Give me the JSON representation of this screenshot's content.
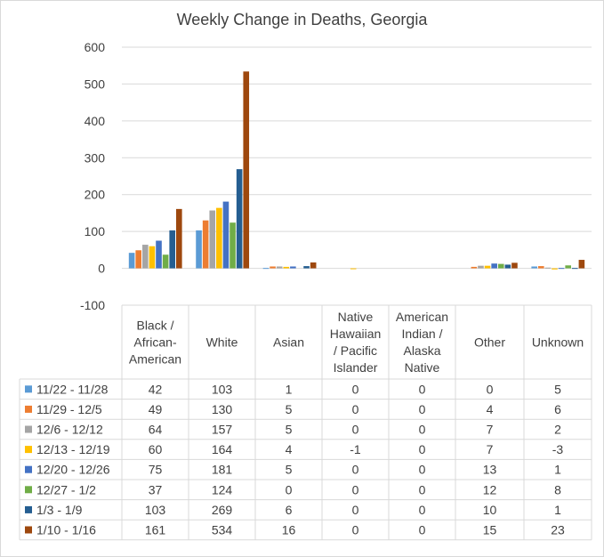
{
  "chart_data": {
    "type": "bar",
    "title": "Weekly Change in Deaths, Georgia",
    "xlabel": "",
    "ylabel": "",
    "ylim": [
      -100,
      600
    ],
    "yticks": [
      "600",
      "500",
      "400",
      "300",
      "200",
      "100",
      "0",
      "-100"
    ],
    "grid": true,
    "legend": "table-rows",
    "categories": [
      [
        "Black /",
        "African-",
        "American"
      ],
      [
        "White"
      ],
      [
        "Asian"
      ],
      [
        "Native",
        "Hawaiian",
        "/ Pacific",
        "Islander"
      ],
      [
        "American",
        "Indian /",
        "Alaska",
        "Native"
      ],
      [
        "Other"
      ],
      [
        "Unknown"
      ]
    ],
    "series": [
      {
        "name": "11/22 - 11/28",
        "color": "#5b9bd5",
        "values": [
          42,
          103,
          1,
          0,
          0,
          0,
          5
        ]
      },
      {
        "name": "11/29 - 12/5",
        "color": "#ed7d31",
        "values": [
          49,
          130,
          5,
          0,
          0,
          4,
          6
        ]
      },
      {
        "name": "12/6 - 12/12",
        "color": "#a5a5a5",
        "values": [
          64,
          157,
          5,
          0,
          0,
          7,
          2
        ]
      },
      {
        "name": "12/13 - 12/19",
        "color": "#ffc000",
        "values": [
          60,
          164,
          4,
          -1,
          0,
          7,
          -3
        ]
      },
      {
        "name": "12/20 - 12/26",
        "color": "#4472c4",
        "values": [
          75,
          181,
          5,
          0,
          0,
          13,
          1
        ]
      },
      {
        "name": "12/27 - 1/2",
        "color": "#70ad47",
        "values": [
          37,
          124,
          0,
          0,
          0,
          12,
          8
        ]
      },
      {
        "name": "1/3 - 1/9",
        "color": "#255e91",
        "values": [
          103,
          269,
          6,
          0,
          0,
          10,
          1
        ]
      },
      {
        "name": "1/10 - 1/16",
        "color": "#9e480e",
        "values": [
          161,
          534,
          16,
          0,
          0,
          15,
          23
        ]
      }
    ]
  }
}
